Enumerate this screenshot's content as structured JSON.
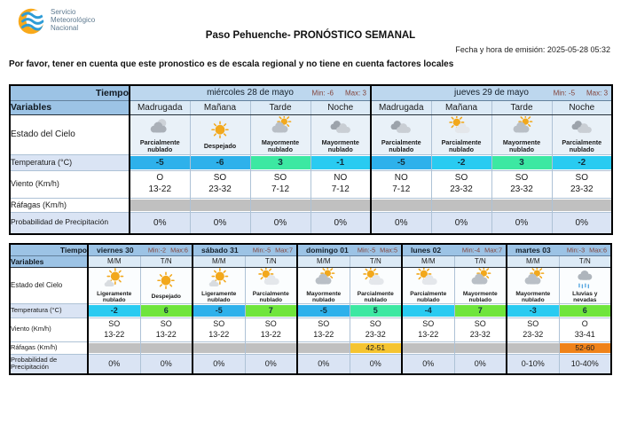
{
  "header": {
    "logo_lines": [
      "Servicio",
      "Meteorológico",
      "Nacional"
    ],
    "title": "Paso Pehuenche- PRONÓSTICO SEMANAL",
    "emission": "Fecha y hora de emisión: 2025-05-28 05:32",
    "notice": "Por favor, tener en cuenta que este pronostico es de escala regional y no tiene en cuenta factores locales"
  },
  "row_labels": {
    "tiempo": "Tiempo",
    "variables": "Variables",
    "estado": "Estado del Cielo",
    "temperatura": "Temperatura (°C)",
    "viento": "Viento (Km/h)",
    "rafagas": "Ráfagas (Km/h)",
    "precipitacion": "Probabilidad de Precipitación"
  },
  "colors": {
    "temp_blue": "#2EB1EB",
    "temp_cyan": "#29CBF1",
    "temp_mint": "#3CE8A2",
    "temp_green": "#6FE53C",
    "gust_gray": "#C0C0C0",
    "gust_yellow": "#F5C431",
    "gust_orange": "#EF8219",
    "header_blue": "#9CC3E5",
    "day_strip_blue": "#BDD7EE",
    "period_strip_blue": "#DCEAF6",
    "precip_row_blue": "#DAE4F4"
  },
  "table1": {
    "days": [
      {
        "name": "miércoles 28 de mayo",
        "min": "Min: -6",
        "max": "Max: 3",
        "periods": [
          "Madrugada",
          "Mañana",
          "Tarde",
          "Noche"
        ]
      },
      {
        "name": "jueves 29 de mayo",
        "min": "Min: -5",
        "max": "Max: 3",
        "periods": [
          "Madrugada",
          "Mañana",
          "Tarde",
          "Noche"
        ]
      }
    ],
    "estado": [
      {
        "icon": "cloud-moon",
        "label": "Parcialmente nublado"
      },
      {
        "icon": "sun",
        "label": "Despejado"
      },
      {
        "icon": "cloud-sun-peek",
        "label": "Mayormente nublado"
      },
      {
        "icon": "cloud",
        "label": "Mayormente nublado"
      },
      {
        "icon": "cloud",
        "label": "Parcialmente nublado"
      },
      {
        "icon": "sun-behind-cloud",
        "label": "Parcialmente nublado"
      },
      {
        "icon": "cloud-sun-peek",
        "label": "Mayormente nublado"
      },
      {
        "icon": "cloud",
        "label": "Parcialmente nublado"
      }
    ],
    "temperatura": [
      {
        "value": "-5",
        "bg": "#2EB1EB"
      },
      {
        "value": "-6",
        "bg": "#2EB1EB"
      },
      {
        "value": "3",
        "bg": "#3CE8A2"
      },
      {
        "value": "-1",
        "bg": "#29CBF1"
      },
      {
        "value": "-5",
        "bg": "#2EB1EB"
      },
      {
        "value": "-2",
        "bg": "#29CBF1"
      },
      {
        "value": "3",
        "bg": "#3CE8A2"
      },
      {
        "value": "-2",
        "bg": "#29CBF1"
      }
    ],
    "viento": [
      {
        "dir": "O",
        "range": "13-22"
      },
      {
        "dir": "SO",
        "range": "23-32"
      },
      {
        "dir": "SO",
        "range": "7-12"
      },
      {
        "dir": "NO",
        "range": "7-12"
      },
      {
        "dir": "NO",
        "range": "7-12"
      },
      {
        "dir": "SO",
        "range": "23-32"
      },
      {
        "dir": "SO",
        "range": "23-32"
      },
      {
        "dir": "SO",
        "range": "23-32"
      }
    ],
    "rafagas": [
      {
        "value": "",
        "bg": "#C0C0C0"
      },
      {
        "value": "",
        "bg": "#C0C0C0"
      },
      {
        "value": "",
        "bg": "#C0C0C0"
      },
      {
        "value": "",
        "bg": "#C0C0C0"
      },
      {
        "value": "",
        "bg": "#C0C0C0"
      },
      {
        "value": "",
        "bg": "#C0C0C0"
      },
      {
        "value": "",
        "bg": "#C0C0C0"
      },
      {
        "value": "",
        "bg": "#C0C0C0"
      }
    ],
    "precipitacion": [
      "0%",
      "0%",
      "0%",
      "0%",
      "0%",
      "0%",
      "0%",
      "0%"
    ]
  },
  "table2": {
    "days": [
      {
        "name": "viernes 30",
        "min": "Min:-2",
        "max": "Max:6",
        "periods": [
          "M/M",
          "T/N"
        ]
      },
      {
        "name": "sábado 31",
        "min": "Min:-5",
        "max": "Max:7",
        "periods": [
          "M/M",
          "T/N"
        ]
      },
      {
        "name": "domingo 01",
        "min": "Min:-5",
        "max": "Max:5",
        "periods": [
          "M/M",
          "T/N"
        ]
      },
      {
        "name": "lunes 02",
        "min": "Min:-4",
        "max": "Max:7",
        "periods": [
          "M/M",
          "T/N"
        ]
      },
      {
        "name": "martes 03",
        "min": "Min:-3",
        "max": "Max:6",
        "periods": [
          "M/M",
          "T/N"
        ]
      }
    ],
    "estado": [
      {
        "icon": "sun-small-cloud",
        "label": "Ligeramente nublado"
      },
      {
        "icon": "sun",
        "label": "Despejado"
      },
      {
        "icon": "sun-small-cloud",
        "label": "Ligeramente nublado"
      },
      {
        "icon": "sun-behind-cloud",
        "label": "Parcialmente nublado"
      },
      {
        "icon": "cloud-sun-peek",
        "label": "Mayormente nublado"
      },
      {
        "icon": "sun-behind-cloud",
        "label": "Parcialmente nublado"
      },
      {
        "icon": "sun-behind-cloud",
        "label": "Parcialmente nublado"
      },
      {
        "icon": "cloud-sun-peek",
        "label": "Mayormente nublado"
      },
      {
        "icon": "cloud-sun-peek",
        "label": "Mayormente nublado"
      },
      {
        "icon": "rain-snow",
        "label": "Lluvias y nevadas"
      }
    ],
    "temperatura": [
      {
        "value": "-2",
        "bg": "#29CBF1"
      },
      {
        "value": "6",
        "bg": "#6FE53C"
      },
      {
        "value": "-5",
        "bg": "#2EB1EB"
      },
      {
        "value": "7",
        "bg": "#6FE53C"
      },
      {
        "value": "-5",
        "bg": "#2EB1EB"
      },
      {
        "value": "5",
        "bg": "#3CE8A2"
      },
      {
        "value": "-4",
        "bg": "#29CBF1"
      },
      {
        "value": "7",
        "bg": "#6FE53C"
      },
      {
        "value": "-3",
        "bg": "#29CBF1"
      },
      {
        "value": "6",
        "bg": "#6FE53C"
      }
    ],
    "viento": [
      {
        "dir": "SO",
        "range": "13-22"
      },
      {
        "dir": "SO",
        "range": "13-22"
      },
      {
        "dir": "SO",
        "range": "13-22"
      },
      {
        "dir": "SO",
        "range": "13-22"
      },
      {
        "dir": "SO",
        "range": "13-22"
      },
      {
        "dir": "SO",
        "range": "23-32"
      },
      {
        "dir": "SO",
        "range": "13-22"
      },
      {
        "dir": "SO",
        "range": "23-32"
      },
      {
        "dir": "SO",
        "range": "23-32"
      },
      {
        "dir": "O",
        "range": "33-41"
      }
    ],
    "rafagas": [
      {
        "value": "",
        "bg": "#C0C0C0"
      },
      {
        "value": "",
        "bg": "#C0C0C0"
      },
      {
        "value": "",
        "bg": "#C0C0C0"
      },
      {
        "value": "",
        "bg": "#C0C0C0"
      },
      {
        "value": "",
        "bg": "#C0C0C0"
      },
      {
        "value": "42-51",
        "bg": "#F5C431"
      },
      {
        "value": "",
        "bg": "#C0C0C0"
      },
      {
        "value": "",
        "bg": "#C0C0C0"
      },
      {
        "value": "",
        "bg": "#C0C0C0"
      },
      {
        "value": "52-60",
        "bg": "#EF8219"
      }
    ],
    "precipitacion": [
      "0%",
      "0%",
      "0%",
      "0%",
      "0%",
      "0%",
      "0%",
      "0%",
      "0-10%",
      "10-40%"
    ]
  }
}
